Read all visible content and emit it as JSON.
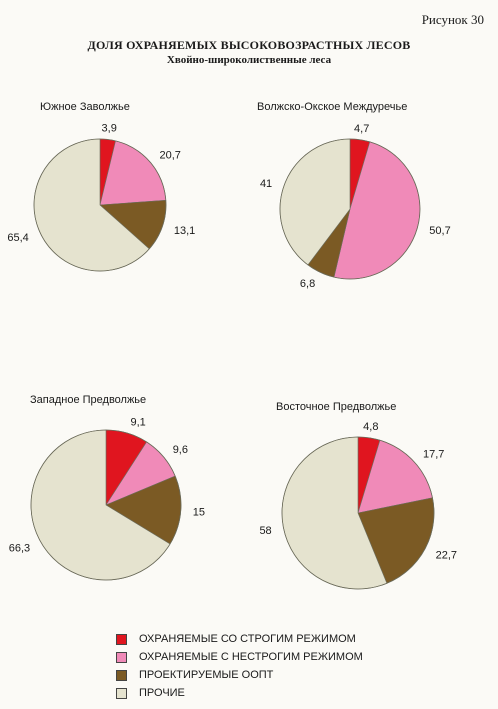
{
  "figure_number": "Рисунок 30",
  "title": "ДОЛЯ ОХРАНЯЕМЫХ ВЫСОКОВОЗРАСТНЫХ ЛЕСОВ",
  "subtitle": "Хвойно-широколиственные леса",
  "legend": [
    {
      "label": "ОХРАНЯЕМЫЕ СО СТРОГИМ РЕЖИМОМ",
      "color": "#e0151f"
    },
    {
      "label": "ОХРАНЯЕМЫЕ С НЕСТРОГИМ РЕЖИМОМ",
      "color": "#f08ab8"
    },
    {
      "label": "ПРОЕКТИРУЕМЫЕ ООПТ",
      "color": "#7b5a24"
    },
    {
      "label": "ПРОЧИЕ",
      "color": "#e5e3cf"
    }
  ],
  "chart_data": [
    {
      "type": "pie",
      "title": "Южное Заволжье",
      "categories": [
        "ОХРАНЯЕМЫЕ СО СТРОГИМ РЕЖИМОМ",
        "ОХРАНЯЕМЫЕ С НЕСТРОГИМ РЕЖИМОМ",
        "ПРОЕКТИРУЕМЫЕ ООПТ",
        "ПРОЧИЕ"
      ],
      "values": [
        3.9,
        20.7,
        13.1,
        65.4
      ],
      "labels": [
        "3,9",
        "20,7",
        "13,1",
        "65,4"
      ],
      "colors": [
        "#e0151f",
        "#f08ab8",
        "#7b5a24",
        "#e5e3cf"
      ]
    },
    {
      "type": "pie",
      "title": "Волжско-Окское  Междуречье",
      "categories": [
        "ОХРАНЯЕМЫЕ СО СТРОГИМ РЕЖИМОМ",
        "ОХРАНЯЕМЫЕ С НЕСТРОГИМ РЕЖИМОМ",
        "ПРОЕКТИРУЕМЫЕ ООПТ",
        "ПРОЧИЕ"
      ],
      "values": [
        4.7,
        50.7,
        6.8,
        41
      ],
      "labels": [
        "4,7",
        "50,7",
        "6,8",
        "41"
      ],
      "colors": [
        "#e0151f",
        "#f08ab8",
        "#7b5a24",
        "#e5e3cf"
      ]
    },
    {
      "type": "pie",
      "title": "Западное Предволжье",
      "categories": [
        "ОХРАНЯЕМЫЕ СО СТРОГИМ РЕЖИМОМ",
        "ОХРАНЯЕМЫЕ С НЕСТРОГИМ РЕЖИМОМ",
        "ПРОЕКТИРУЕМЫЕ ООПТ",
        "ПРОЧИЕ"
      ],
      "values": [
        9.1,
        9.6,
        15,
        66.3
      ],
      "labels": [
        "9,1",
        "9,6",
        "15",
        "66,3"
      ],
      "colors": [
        "#e0151f",
        "#f08ab8",
        "#7b5a24",
        "#e5e3cf"
      ]
    },
    {
      "type": "pie",
      "title": "Восточное Предволжье",
      "categories": [
        "ОХРАНЯЕМЫЕ СО СТРОГИМ РЕЖИМОМ",
        "ОХРАНЯЕМЫЕ С НЕСТРОГИМ РЕЖИМОМ",
        "ПРОЕКТИРУЕМЫЕ ООПТ",
        "ПРОЧИЕ"
      ],
      "values": [
        4.8,
        17.7,
        22.7,
        58
      ],
      "labels": [
        "4,8",
        "17,7",
        "22,7",
        "58"
      ],
      "colors": [
        "#e0151f",
        "#f08ab8",
        "#7b5a24",
        "#e5e3cf"
      ]
    }
  ]
}
